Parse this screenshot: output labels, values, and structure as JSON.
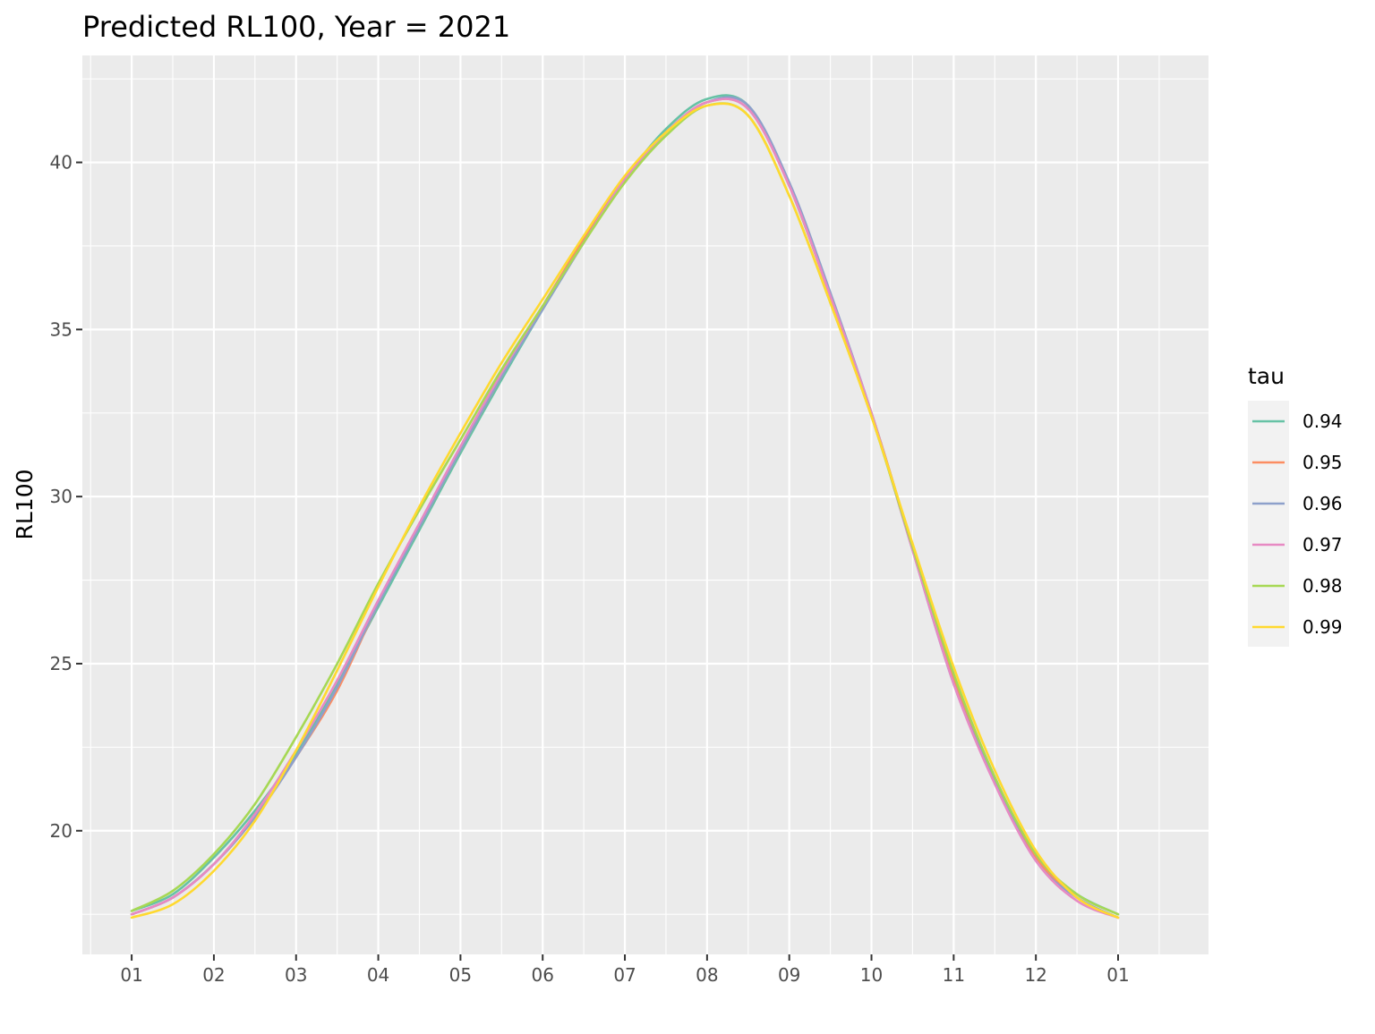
{
  "chart_data": {
    "type": "line",
    "title": "Predicted RL100, Year = 2021",
    "xlabel": "",
    "ylabel": "RL100",
    "x_ticks": [
      "01",
      "02",
      "03",
      "04",
      "05",
      "06",
      "07",
      "08",
      "09",
      "10",
      "11",
      "12",
      "01"
    ],
    "xlim": [
      -0.6,
      13.1
    ],
    "ylim": [
      16.3,
      43.2
    ],
    "y_ticks": [
      20,
      25,
      30,
      35,
      40
    ],
    "grid": true,
    "legend": {
      "title": "tau",
      "placement": "right"
    },
    "x": [
      0,
      0.5,
      1,
      1.5,
      2,
      2.5,
      3,
      3.5,
      4,
      4.5,
      5,
      5.5,
      6,
      6.5,
      7,
      7.5,
      8,
      8.5,
      9,
      9.5,
      10,
      10.5,
      11,
      11.5,
      12
    ],
    "series": [
      {
        "name": "0.94",
        "color": "#66C2A5",
        "values": [
          17.6,
          18.1,
          19.2,
          20.6,
          22.3,
          24.4,
          26.7,
          29.0,
          31.3,
          33.5,
          35.6,
          37.6,
          39.5,
          41.0,
          41.9,
          41.7,
          39.3,
          36.0,
          32.5,
          28.5,
          24.6,
          21.6,
          19.2,
          18.1,
          17.5
        ]
      },
      {
        "name": "0.95",
        "color": "#FC8D62",
        "values": [
          17.5,
          18.0,
          19.0,
          20.4,
          22.2,
          24.2,
          26.8,
          29.1,
          31.4,
          33.6,
          35.7,
          37.7,
          39.5,
          40.9,
          41.8,
          41.6,
          39.3,
          36.0,
          32.5,
          28.5,
          24.5,
          21.5,
          19.2,
          18.0,
          17.4
        ]
      },
      {
        "name": "0.96",
        "color": "#8DA0CB",
        "values": [
          17.5,
          18.0,
          19.0,
          20.4,
          22.2,
          24.3,
          26.8,
          29.1,
          31.4,
          33.6,
          35.6,
          37.6,
          39.5,
          40.9,
          41.8,
          41.7,
          39.4,
          36.1,
          32.5,
          28.4,
          24.4,
          21.5,
          19.1,
          18.0,
          17.4
        ]
      },
      {
        "name": "0.97",
        "color": "#E78AC3",
        "values": [
          17.5,
          18.0,
          19.0,
          20.5,
          22.4,
          24.5,
          26.9,
          29.2,
          31.5,
          33.7,
          35.7,
          37.6,
          39.5,
          40.9,
          41.8,
          41.6,
          39.3,
          36.0,
          32.5,
          28.4,
          24.4,
          21.4,
          19.1,
          17.9,
          17.4
        ]
      },
      {
        "name": "0.98",
        "color": "#A6D854",
        "values": [
          17.6,
          18.2,
          19.3,
          20.8,
          22.8,
          25.0,
          27.4,
          29.6,
          31.7,
          33.8,
          35.7,
          37.6,
          39.4,
          40.8,
          41.7,
          41.4,
          39.0,
          35.8,
          32.4,
          28.5,
          24.7,
          21.6,
          19.3,
          18.1,
          17.5
        ]
      },
      {
        "name": "0.99",
        "color": "#FFD92F",
        "values": [
          17.4,
          17.8,
          18.8,
          20.3,
          22.4,
          24.8,
          27.3,
          29.7,
          31.9,
          34.0,
          35.9,
          37.8,
          39.6,
          40.9,
          41.7,
          41.4,
          39.0,
          35.8,
          32.4,
          28.6,
          24.9,
          21.8,
          19.4,
          18.0,
          17.4
        ]
      }
    ]
  }
}
